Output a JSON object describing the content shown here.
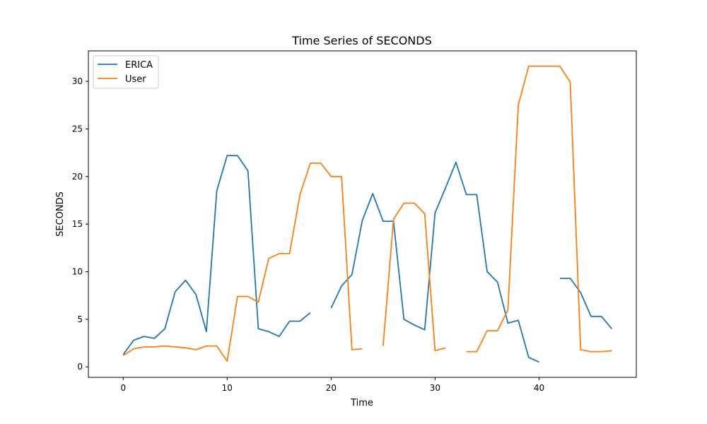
{
  "chart_data": {
    "type": "line",
    "title": "Time Series of SECONDS",
    "xlabel": "Time",
    "ylabel": "SECONDS",
    "xlim": [
      -3.35,
      49.35
    ],
    "ylim": [
      -1.1,
      33.2
    ],
    "xticks": [
      0,
      10,
      20,
      30,
      40
    ],
    "yticks": [
      0,
      5,
      10,
      15,
      20,
      25,
      30
    ],
    "grid": false,
    "legend_position": "top-left",
    "x": [
      0,
      1,
      2,
      3,
      4,
      5,
      6,
      7,
      8,
      9,
      10,
      11,
      12,
      13,
      14,
      15,
      16,
      17,
      18,
      19,
      20,
      21,
      22,
      23,
      24,
      25,
      26,
      27,
      28,
      29,
      30,
      31,
      32,
      33,
      34,
      35,
      36,
      37,
      38,
      39,
      40,
      41,
      42,
      43,
      44,
      45,
      46,
      47
    ],
    "series": [
      {
        "name": "ERICA",
        "color": "#1f77b4",
        "values": [
          1.3,
          2.8,
          3.2,
          3.0,
          4.0,
          7.9,
          9.1,
          7.6,
          3.7,
          18.5,
          22.2,
          22.2,
          20.6,
          4.0,
          3.7,
          3.2,
          4.8,
          4.8,
          5.7,
          null,
          6.2,
          8.5,
          9.7,
          15.4,
          18.2,
          15.3,
          15.3,
          5.0,
          4.4,
          3.9,
          16.2,
          18.8,
          21.5,
          18.1,
          18.1,
          10.0,
          8.9,
          4.6,
          4.9,
          1.0,
          0.5,
          null,
          9.3,
          9.3,
          7.8,
          5.3,
          5.3,
          4.0
        ]
      },
      {
        "name": "User",
        "color": "#ff7f0e",
        "values": [
          1.2,
          1.9,
          2.1,
          2.1,
          2.2,
          2.1,
          2.0,
          1.8,
          2.2,
          2.2,
          0.6,
          7.4,
          7.4,
          6.8,
          11.4,
          11.9,
          11.9,
          18.1,
          21.4,
          21.4,
          20.0,
          20.0,
          1.8,
          1.9,
          null,
          2.2,
          15.5,
          17.2,
          17.2,
          16.1,
          1.7,
          2.0,
          null,
          1.6,
          1.6,
          3.8,
          3.8,
          6.0,
          27.5,
          31.6,
          31.6,
          31.6,
          31.6,
          29.9,
          1.8,
          1.6,
          1.6,
          1.7
        ]
      }
    ]
  }
}
